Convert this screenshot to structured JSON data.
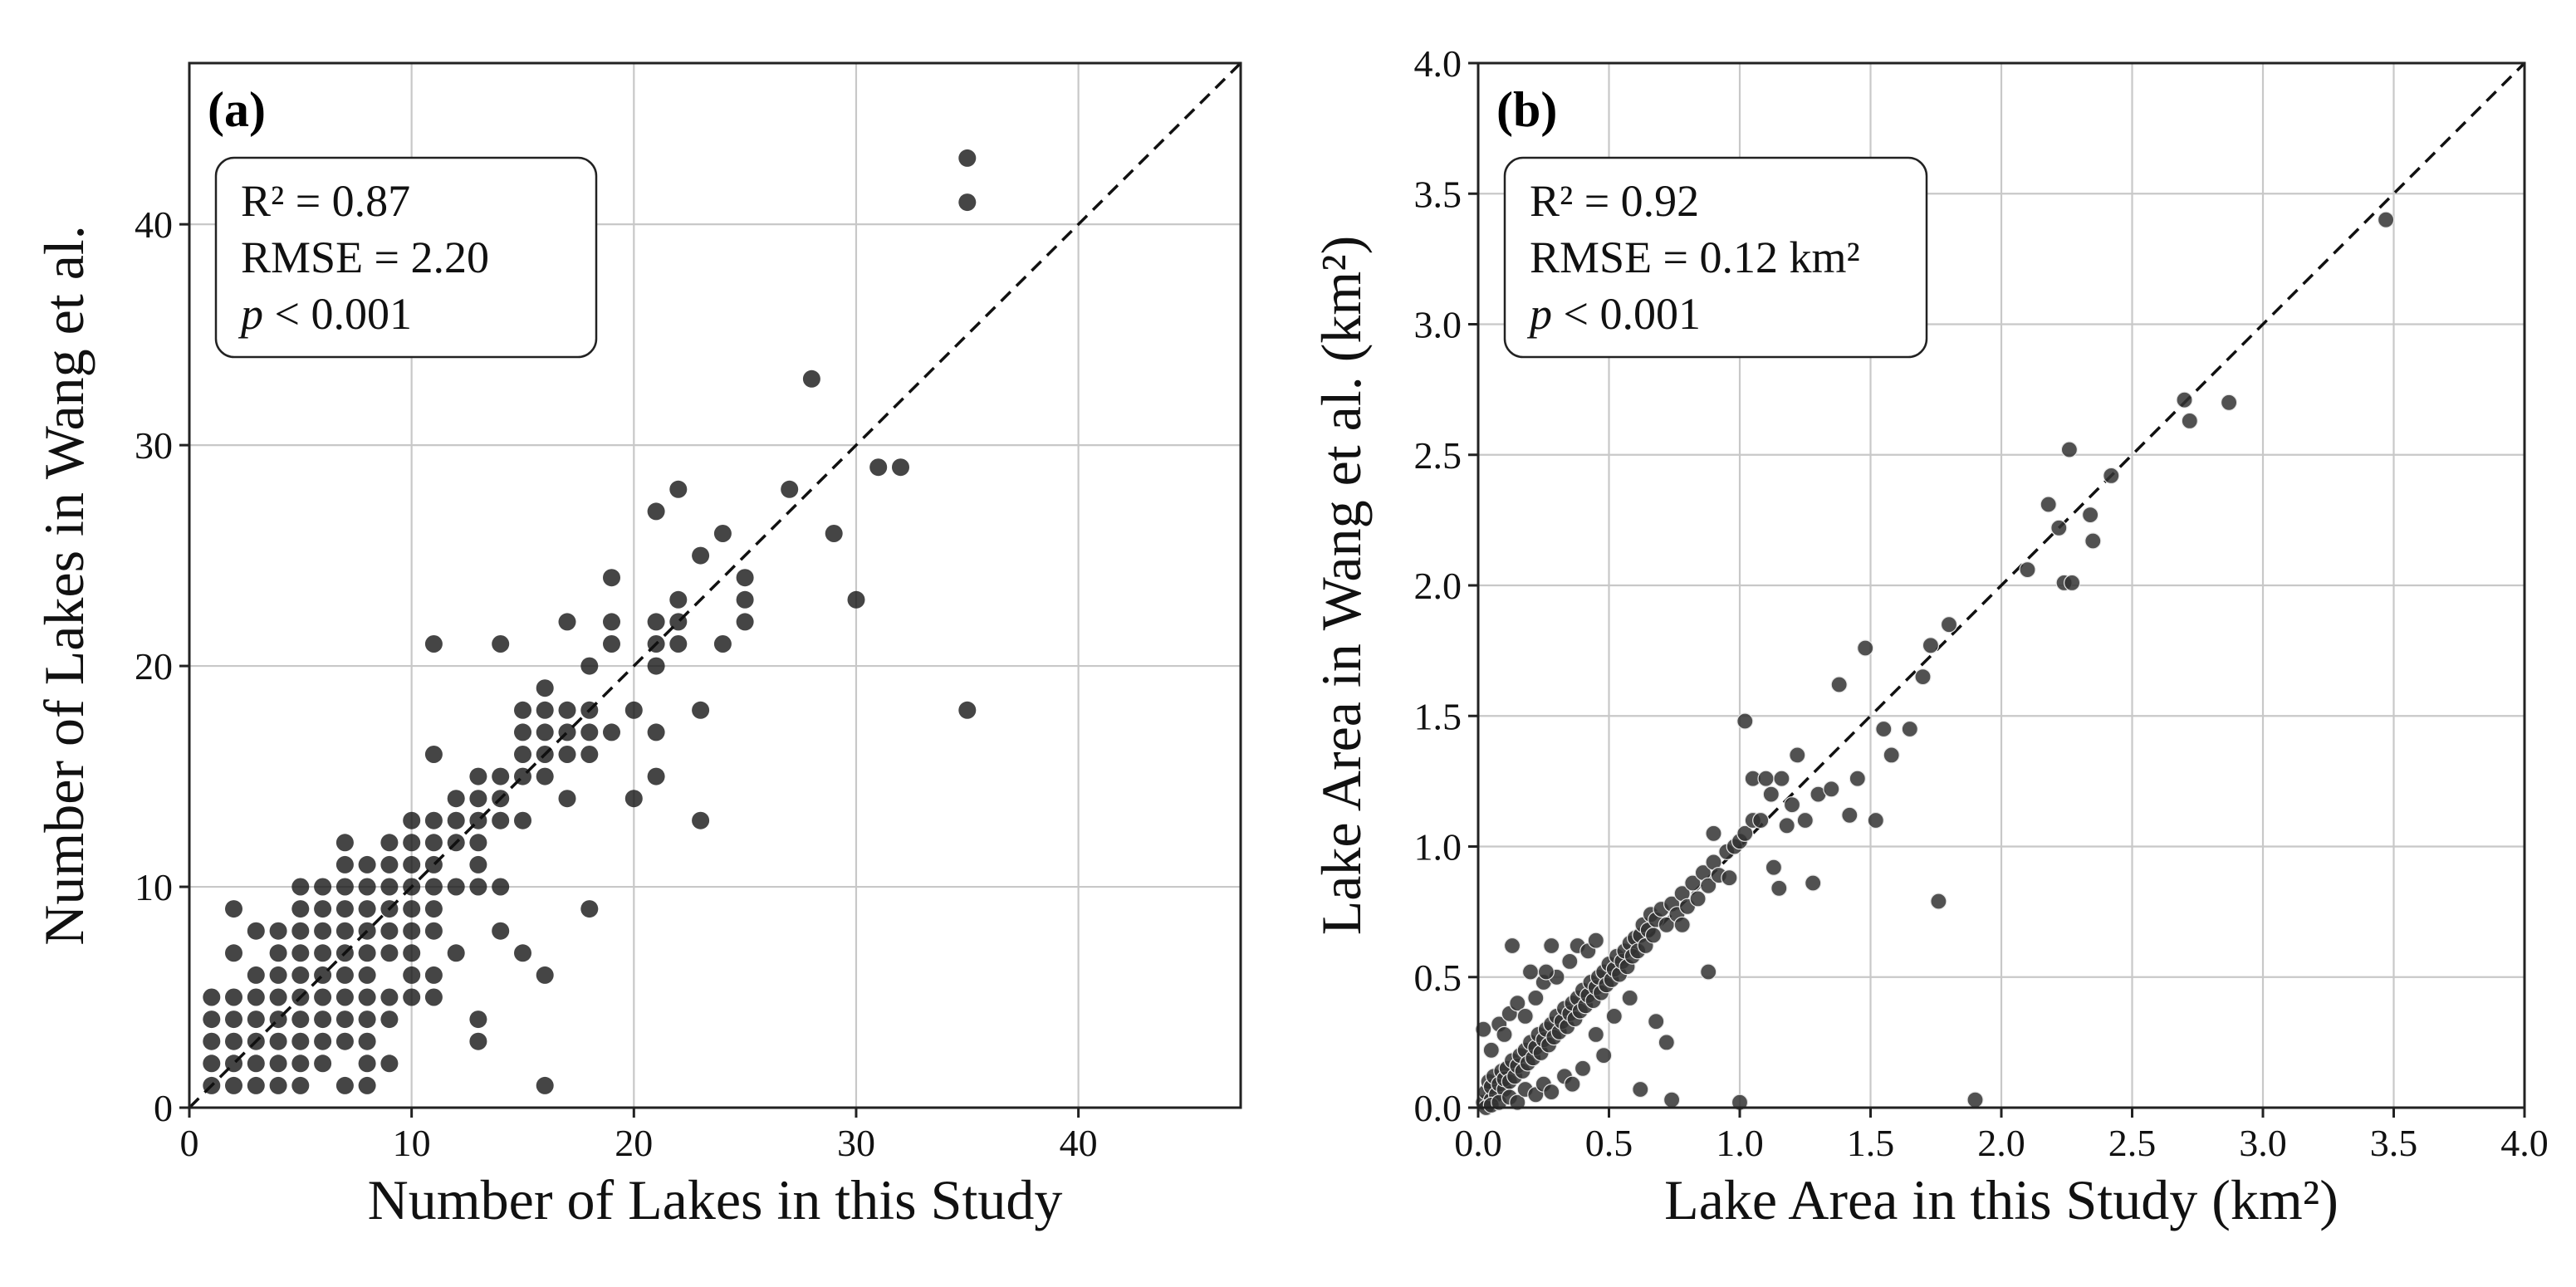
{
  "chart_data": [
    {
      "type": "scatter",
      "panel_label": "(a)",
      "xlabel": "Number of Lakes in this Study",
      "ylabel": "Number of Lakes in Wang et al.",
      "xlim": [
        0,
        47.3
      ],
      "ylim": [
        0,
        47.3
      ],
      "xticks": [
        0,
        10,
        20,
        30,
        40
      ],
      "yticks": [
        0,
        10,
        20,
        30,
        40
      ],
      "grid": true,
      "reference_line": "1:1",
      "stats": {
        "r2": "R² = 0.87",
        "rmse": "RMSE = 2.20",
        "p_sym": "p",
        "p_rest": " < 0.001"
      },
      "points": [
        [
          1,
          1
        ],
        [
          1,
          2
        ],
        [
          1,
          3
        ],
        [
          1,
          4
        ],
        [
          1,
          5
        ],
        [
          2,
          1
        ],
        [
          2,
          2
        ],
        [
          2,
          3
        ],
        [
          2,
          4
        ],
        [
          2,
          5
        ],
        [
          2,
          7
        ],
        [
          2,
          9
        ],
        [
          3,
          1
        ],
        [
          3,
          2
        ],
        [
          3,
          3
        ],
        [
          3,
          4
        ],
        [
          3,
          5
        ],
        [
          3,
          6
        ],
        [
          3,
          8
        ],
        [
          4,
          1
        ],
        [
          4,
          2
        ],
        [
          4,
          3
        ],
        [
          4,
          4
        ],
        [
          4,
          5
        ],
        [
          4,
          6
        ],
        [
          4,
          7
        ],
        [
          4,
          8
        ],
        [
          5,
          1
        ],
        [
          5,
          2
        ],
        [
          5,
          3
        ],
        [
          5,
          4
        ],
        [
          5,
          5
        ],
        [
          5,
          6
        ],
        [
          5,
          7
        ],
        [
          5,
          8
        ],
        [
          5,
          9
        ],
        [
          5,
          10
        ],
        [
          6,
          2
        ],
        [
          6,
          3
        ],
        [
          6,
          4
        ],
        [
          6,
          5
        ],
        [
          6,
          6
        ],
        [
          6,
          7
        ],
        [
          6,
          8
        ],
        [
          6,
          9
        ],
        [
          6,
          10
        ],
        [
          7,
          1
        ],
        [
          7,
          3
        ],
        [
          7,
          4
        ],
        [
          7,
          5
        ],
        [
          7,
          6
        ],
        [
          7,
          7
        ],
        [
          7,
          8
        ],
        [
          7,
          9
        ],
        [
          7,
          10
        ],
        [
          7,
          11
        ],
        [
          7,
          12
        ],
        [
          8,
          1
        ],
        [
          8,
          2
        ],
        [
          8,
          3
        ],
        [
          8,
          4
        ],
        [
          8,
          5
        ],
        [
          8,
          6
        ],
        [
          8,
          7
        ],
        [
          8,
          8
        ],
        [
          8,
          9
        ],
        [
          8,
          10
        ],
        [
          8,
          11
        ],
        [
          9,
          2
        ],
        [
          9,
          4
        ],
        [
          9,
          5
        ],
        [
          9,
          7
        ],
        [
          9,
          8
        ],
        [
          9,
          9
        ],
        [
          9,
          10
        ],
        [
          9,
          11
        ],
        [
          9,
          12
        ],
        [
          10,
          5
        ],
        [
          10,
          6
        ],
        [
          10,
          7
        ],
        [
          10,
          8
        ],
        [
          10,
          9
        ],
        [
          10,
          10
        ],
        [
          10,
          11
        ],
        [
          10,
          12
        ],
        [
          10,
          13
        ],
        [
          11,
          5
        ],
        [
          11,
          6
        ],
        [
          11,
          8
        ],
        [
          11,
          9
        ],
        [
          11,
          10
        ],
        [
          11,
          11
        ],
        [
          11,
          12
        ],
        [
          11,
          13
        ],
        [
          11,
          16
        ],
        [
          11,
          21
        ],
        [
          12,
          7
        ],
        [
          12,
          10
        ],
        [
          12,
          12
        ],
        [
          12,
          13
        ],
        [
          12,
          14
        ],
        [
          13,
          3
        ],
        [
          13,
          4
        ],
        [
          13,
          10
        ],
        [
          13,
          11
        ],
        [
          13,
          12
        ],
        [
          13,
          13
        ],
        [
          13,
          14
        ],
        [
          13,
          15
        ],
        [
          14,
          8
        ],
        [
          14,
          10
        ],
        [
          14,
          13
        ],
        [
          14,
          14
        ],
        [
          14,
          15
        ],
        [
          14,
          21
        ],
        [
          15,
          7
        ],
        [
          15,
          13
        ],
        [
          15,
          15
        ],
        [
          15,
          16
        ],
        [
          15,
          17
        ],
        [
          15,
          18
        ],
        [
          16,
          1
        ],
        [
          16,
          6
        ],
        [
          16,
          15
        ],
        [
          16,
          16
        ],
        [
          16,
          17
        ],
        [
          16,
          18
        ],
        [
          16,
          19
        ],
        [
          17,
          14
        ],
        [
          17,
          16
        ],
        [
          17,
          17
        ],
        [
          17,
          18
        ],
        [
          17,
          22
        ],
        [
          18,
          9
        ],
        [
          18,
          16
        ],
        [
          18,
          17
        ],
        [
          18,
          18
        ],
        [
          18,
          20
        ],
        [
          19,
          17
        ],
        [
          19,
          21
        ],
        [
          19,
          22
        ],
        [
          19,
          24
        ],
        [
          20,
          14
        ],
        [
          20,
          18
        ],
        [
          21,
          15
        ],
        [
          21,
          17
        ],
        [
          21,
          20
        ],
        [
          21,
          21
        ],
        [
          21,
          22
        ],
        [
          21,
          27
        ],
        [
          22,
          21
        ],
        [
          22,
          22
        ],
        [
          22,
          23
        ],
        [
          22,
          28
        ],
        [
          23,
          13
        ],
        [
          23,
          18
        ],
        [
          23,
          25
        ],
        [
          24,
          21
        ],
        [
          24,
          26
        ],
        [
          25,
          22
        ],
        [
          25,
          23
        ],
        [
          25,
          24
        ],
        [
          27,
          28
        ],
        [
          28,
          33
        ],
        [
          29,
          26
        ],
        [
          30,
          23
        ],
        [
          31,
          29
        ],
        [
          32,
          29
        ],
        [
          35,
          18
        ],
        [
          35,
          41
        ],
        [
          35,
          43
        ]
      ]
    },
    {
      "type": "scatter",
      "panel_label": "(b)",
      "xlabel": "Lake Area in this Study (km²)",
      "ylabel": "Lake Area in Wang et al. (km²)",
      "xlim": [
        0,
        4.0
      ],
      "ylim": [
        0,
        4.0
      ],
      "xticks": [
        0.0,
        0.5,
        1.0,
        1.5,
        2.0,
        2.5,
        3.0,
        3.5,
        4.0
      ],
      "yticks": [
        0.0,
        0.5,
        1.0,
        1.5,
        2.0,
        2.5,
        3.0,
        3.5,
        4.0
      ],
      "grid": true,
      "reference_line": "1:1",
      "stats": {
        "r2": "R² = 0.92",
        "rmse": "RMSE = 0.12 km²",
        "p_sym": "p",
        "p_rest": " < 0.001"
      },
      "points": [
        [
          0.02,
          0.02
        ],
        [
          0.03,
          0.06
        ],
        [
          0.04,
          0.1
        ],
        [
          0.05,
          0.03
        ],
        [
          0.05,
          0.08
        ],
        [
          0.06,
          0.12
        ],
        [
          0.07,
          0.05
        ],
        [
          0.08,
          0.09
        ],
        [
          0.09,
          0.14
        ],
        [
          0.1,
          0.07
        ],
        [
          0.1,
          0.11
        ],
        [
          0.11,
          0.15
        ],
        [
          0.12,
          0.1
        ],
        [
          0.13,
          0.18
        ],
        [
          0.14,
          0.12
        ],
        [
          0.15,
          0.16
        ],
        [
          0.16,
          0.2
        ],
        [
          0.17,
          0.14
        ],
        [
          0.18,
          0.22
        ],
        [
          0.19,
          0.17
        ],
        [
          0.2,
          0.25
        ],
        [
          0.21,
          0.19
        ],
        [
          0.22,
          0.23
        ],
        [
          0.23,
          0.28
        ],
        [
          0.24,
          0.21
        ],
        [
          0.25,
          0.26
        ],
        [
          0.26,
          0.3
        ],
        [
          0.27,
          0.24
        ],
        [
          0.28,
          0.32
        ],
        [
          0.29,
          0.27
        ],
        [
          0.3,
          0.35
        ],
        [
          0.31,
          0.29
        ],
        [
          0.32,
          0.33
        ],
        [
          0.33,
          0.38
        ],
        [
          0.34,
          0.31
        ],
        [
          0.35,
          0.36
        ],
        [
          0.36,
          0.4
        ],
        [
          0.37,
          0.34
        ],
        [
          0.38,
          0.42
        ],
        [
          0.39,
          0.37
        ],
        [
          0.4,
          0.45
        ],
        [
          0.41,
          0.39
        ],
        [
          0.42,
          0.43
        ],
        [
          0.43,
          0.48
        ],
        [
          0.44,
          0.41
        ],
        [
          0.45,
          0.46
        ],
        [
          0.46,
          0.5
        ],
        [
          0.47,
          0.44
        ],
        [
          0.48,
          0.52
        ],
        [
          0.49,
          0.47
        ],
        [
          0.5,
          0.55
        ],
        [
          0.51,
          0.49
        ],
        [
          0.52,
          0.53
        ],
        [
          0.53,
          0.58
        ],
        [
          0.54,
          0.51
        ],
        [
          0.55,
          0.56
        ],
        [
          0.56,
          0.6
        ],
        [
          0.57,
          0.54
        ],
        [
          0.58,
          0.63
        ],
        [
          0.59,
          0.58
        ],
        [
          0.6,
          0.65
        ],
        [
          0.61,
          0.6
        ],
        [
          0.62,
          0.66
        ],
        [
          0.63,
          0.7
        ],
        [
          0.64,
          0.62
        ],
        [
          0.65,
          0.68
        ],
        [
          0.66,
          0.74
        ],
        [
          0.67,
          0.66
        ],
        [
          0.68,
          0.72
        ],
        [
          0.7,
          0.76
        ],
        [
          0.72,
          0.7
        ],
        [
          0.74,
          0.78
        ],
        [
          0.76,
          0.74
        ],
        [
          0.78,
          0.82
        ],
        [
          0.8,
          0.77
        ],
        [
          0.82,
          0.86
        ],
        [
          0.84,
          0.8
        ],
        [
          0.86,
          0.9
        ],
        [
          0.88,
          0.85
        ],
        [
          0.9,
          0.94
        ],
        [
          0.92,
          0.89
        ],
        [
          0.95,
          0.98
        ],
        [
          0.98,
          1.0
        ],
        [
          1.0,
          1.02
        ],
        [
          1.02,
          1.05
        ],
        [
          1.05,
          1.1
        ],
        [
          0.03,
          0.0
        ],
        [
          0.05,
          0.01
        ],
        [
          0.08,
          0.02
        ],
        [
          0.12,
          0.04
        ],
        [
          0.15,
          0.02
        ],
        [
          0.18,
          0.07
        ],
        [
          0.22,
          0.05
        ],
        [
          0.25,
          0.09
        ],
        [
          0.28,
          0.06
        ],
        [
          0.33,
          0.12
        ],
        [
          0.36,
          0.09
        ],
        [
          0.4,
          0.15
        ],
        [
          0.45,
          0.28
        ],
        [
          0.48,
          0.2
        ],
        [
          0.52,
          0.35
        ],
        [
          0.58,
          0.42
        ],
        [
          0.02,
          0.3
        ],
        [
          0.05,
          0.22
        ],
        [
          0.08,
          0.32
        ],
        [
          0.1,
          0.28
        ],
        [
          0.12,
          0.36
        ],
        [
          0.15,
          0.4
        ],
        [
          0.18,
          0.35
        ],
        [
          0.2,
          0.52
        ],
        [
          0.22,
          0.42
        ],
        [
          0.25,
          0.48
        ],
        [
          0.28,
          0.62
        ],
        [
          0.3,
          0.5
        ],
        [
          0.35,
          0.56
        ],
        [
          0.38,
          0.62
        ],
        [
          0.42,
          0.6
        ],
        [
          0.45,
          0.64
        ],
        [
          0.13,
          0.62
        ],
        [
          0.26,
          0.52
        ],
        [
          0.62,
          0.07
        ],
        [
          0.68,
          0.33
        ],
        [
          0.72,
          0.25
        ],
        [
          0.74,
          0.03
        ],
        [
          0.78,
          0.7
        ],
        [
          0.88,
          0.52
        ],
        [
          0.9,
          1.05
        ],
        [
          0.96,
          0.88
        ],
        [
          1.0,
          0.02
        ],
        [
          1.02,
          1.48
        ],
        [
          1.05,
          1.26
        ],
        [
          1.08,
          1.1
        ],
        [
          1.1,
          1.26
        ],
        [
          1.12,
          1.2
        ],
        [
          1.13,
          0.92
        ],
        [
          1.15,
          0.84
        ],
        [
          1.16,
          1.26
        ],
        [
          1.18,
          1.08
        ],
        [
          1.2,
          1.16
        ],
        [
          1.22,
          1.35
        ],
        [
          1.25,
          1.1
        ],
        [
          1.28,
          0.86
        ],
        [
          1.3,
          1.2
        ],
        [
          1.35,
          1.22
        ],
        [
          1.38,
          1.62
        ],
        [
          1.42,
          1.12
        ],
        [
          1.45,
          1.26
        ],
        [
          1.48,
          1.76
        ],
        [
          1.52,
          1.1
        ],
        [
          1.55,
          1.45
        ],
        [
          1.58,
          1.35
        ],
        [
          1.65,
          1.45
        ],
        [
          1.7,
          1.65
        ],
        [
          1.73,
          1.77
        ],
        [
          1.76,
          0.79
        ],
        [
          1.8,
          1.85
        ],
        [
          1.9,
          0.03
        ],
        [
          2.1,
          2.06
        ],
        [
          2.18,
          2.31
        ],
        [
          2.22,
          2.22
        ],
        [
          2.24,
          2.01
        ],
        [
          2.26,
          2.52
        ],
        [
          2.27,
          2.01
        ],
        [
          2.34,
          2.27
        ],
        [
          2.35,
          2.17
        ],
        [
          2.42,
          2.42
        ],
        [
          2.7,
          2.71
        ],
        [
          2.72,
          2.63
        ],
        [
          2.87,
          2.7
        ],
        [
          3.47,
          3.4
        ]
      ]
    }
  ]
}
